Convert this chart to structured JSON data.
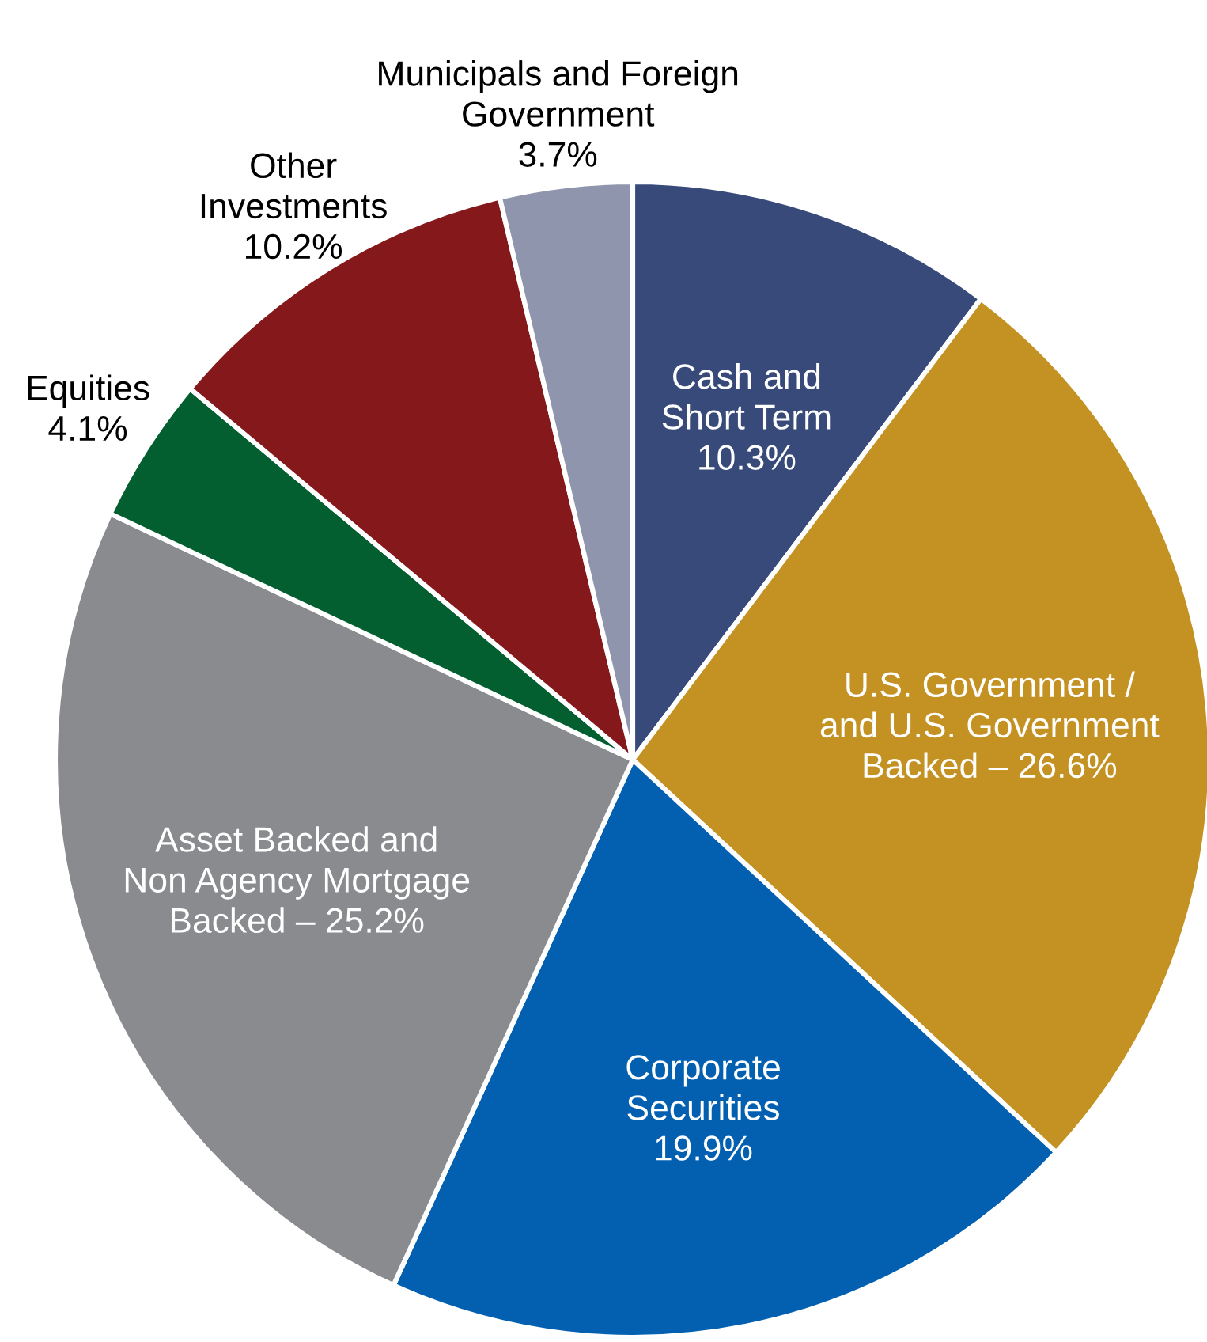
{
  "chart_data": {
    "type": "pie",
    "categories": [
      "Cash and\nShort Term\n",
      "U.S. Government /\nand U.S. Government\nBacked – ",
      "Corporate\nSecurities\n",
      "Asset Backed and\nNon Agency Mortgage\nBacked – ",
      "Equities\n",
      "Other\nInvestments\n",
      "Municipals and Foreign\nGovernment\n"
    ],
    "values": [
      10.3,
      26.6,
      19.9,
      25.2,
      4.1,
      10.2,
      3.7
    ],
    "value_labels": [
      "10.3%",
      "26.6%",
      "19.9%",
      "25.2%",
      "4.1%",
      "10.2%",
      "3.7%"
    ],
    "colors": [
      "#374a7a",
      "#c49222",
      "#0360b0",
      "#8a8b8e",
      "#035f2f",
      "#85181a",
      "#8e95ac"
    ]
  }
}
